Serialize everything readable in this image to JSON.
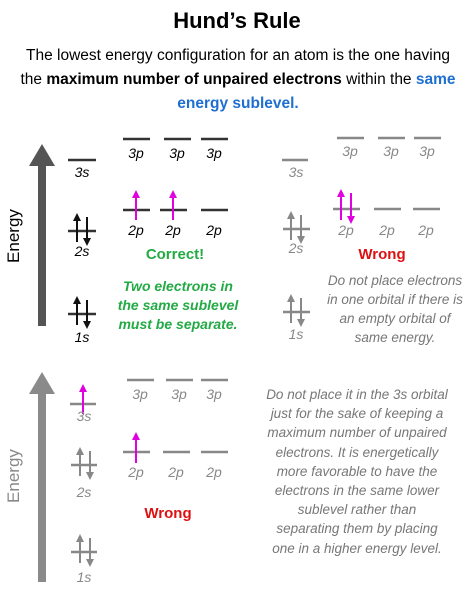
{
  "title": "Hund’s Rule",
  "intro": {
    "part1": "The lowest energy configuration for an atom is the one having the ",
    "bold": "maximum number of unpaired electrons",
    "part2": " within the ",
    "highlight": "same energy sublevel."
  },
  "axis_label": "Energy",
  "orbital_labels": {
    "three_s": "3s",
    "three_p": "3p",
    "two_s": "2s",
    "two_p": "2p",
    "one_s": "1s"
  },
  "panels": {
    "correct": {
      "status": "Correct!",
      "note_line1": "Two electrons in",
      "note_line2": "the same sublevel",
      "note_line3": "must be separate."
    },
    "wrong1": {
      "status": "Wrong",
      "note_line1": "Do not place electrons",
      "note_line2": "in one orbital if there is",
      "note_line3": "an empty orbital of",
      "note_line4": "same energy."
    },
    "wrong2": {
      "status": "Wrong",
      "note_line1": "Do not place it in the 3s orbital",
      "note_line2": "just for the sake of keeping a",
      "note_line3": "maximum number of unpaired",
      "note_line4": "electrons. It is energetically",
      "note_line5": "more favorable to have the",
      "note_line6": "electrons in the same lower",
      "note_line7": "sublevel rather than",
      "note_line8": "separating them by placing",
      "note_line9": "one in a higher energy level."
    }
  },
  "colors": {
    "electron_highlight": "#e000e0",
    "correct_green": "#22aa44",
    "wrong_red": "#dd1111",
    "dim_gray": "#888888",
    "axis_dark": "#555555",
    "highlight_blue": "#1f6fd0"
  }
}
